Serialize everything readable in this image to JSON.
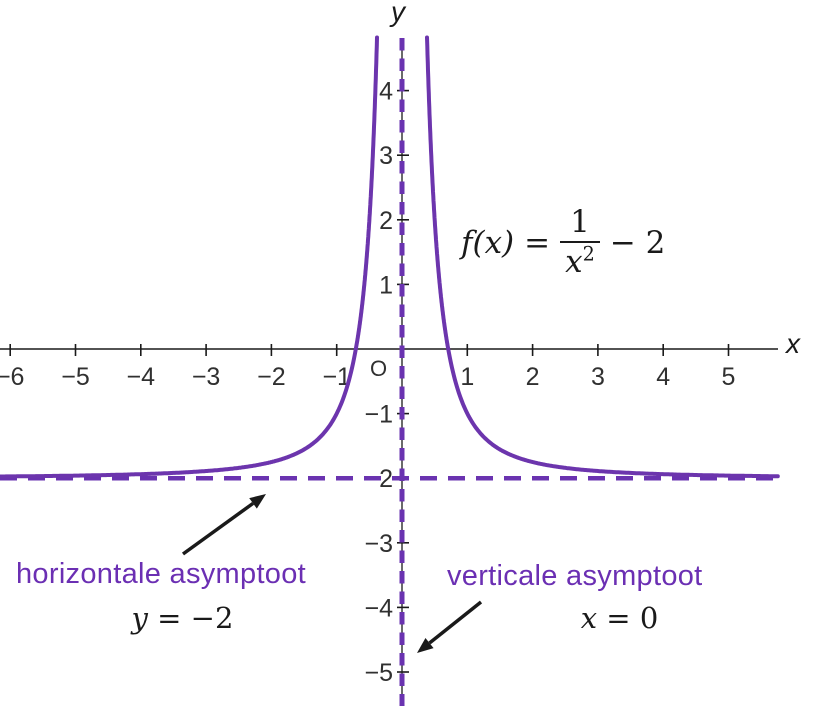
{
  "chart_data": {
    "type": "line",
    "title": "",
    "function_formula": "f(x) = 1/x² − 2",
    "function_label": {
      "lhs": "f(x)",
      "eq": "=",
      "frac_num": "1",
      "frac_den_base": "x",
      "frac_den_exp": "2",
      "tail": "− 2"
    },
    "xlabel": "x",
    "ylabel": "y",
    "origin_label": "O",
    "xlim": [
      -6.2,
      5.8
    ],
    "ylim": [
      -5.5,
      4.8
    ],
    "grid": false,
    "x_ticks": [
      -6,
      -5,
      -4,
      -3,
      -2,
      -1,
      1,
      2,
      3,
      4,
      5
    ],
    "y_ticks": [
      4,
      3,
      2,
      1,
      -1,
      -2,
      -3,
      -4,
      -5
    ],
    "series": [
      {
        "name": "f(x) = 1/x² − 2",
        "formula": "1/x^2 - 2",
        "color": "#6c35ad",
        "sample_points": [
          {
            "x": -5,
            "y": -1.96
          },
          {
            "x": -4,
            "y": -1.94
          },
          {
            "x": -3,
            "y": -1.89
          },
          {
            "x": -2,
            "y": -1.75
          },
          {
            "x": -1,
            "y": -1
          },
          {
            "x": -0.5,
            "y": 2
          },
          {
            "x": 0.5,
            "y": 2
          },
          {
            "x": 1,
            "y": -1
          },
          {
            "x": 2,
            "y": -1.75
          },
          {
            "x": 3,
            "y": -1.89
          },
          {
            "x": 4,
            "y": -1.94
          },
          {
            "x": 5,
            "y": -1.96
          }
        ]
      }
    ],
    "asymptotes": [
      {
        "orientation": "horizontal",
        "value": -2,
        "style": "dashed",
        "label": "horizontale asymptoot",
        "equation_lhs": "y",
        "equation_rhs": " = −2"
      },
      {
        "orientation": "vertical",
        "value": 0,
        "style": "dashed",
        "label": "verticale asymptoot",
        "equation_lhs": "x",
        "equation_rhs": " = 0"
      }
    ],
    "colors": {
      "curve": "#6c35ad",
      "asymptote": "#6a33b0",
      "axis": "#1a1a1a",
      "arrow": "#1a1a1a",
      "tick_text": "#303030",
      "purple_label": "#6b2fb3"
    }
  }
}
